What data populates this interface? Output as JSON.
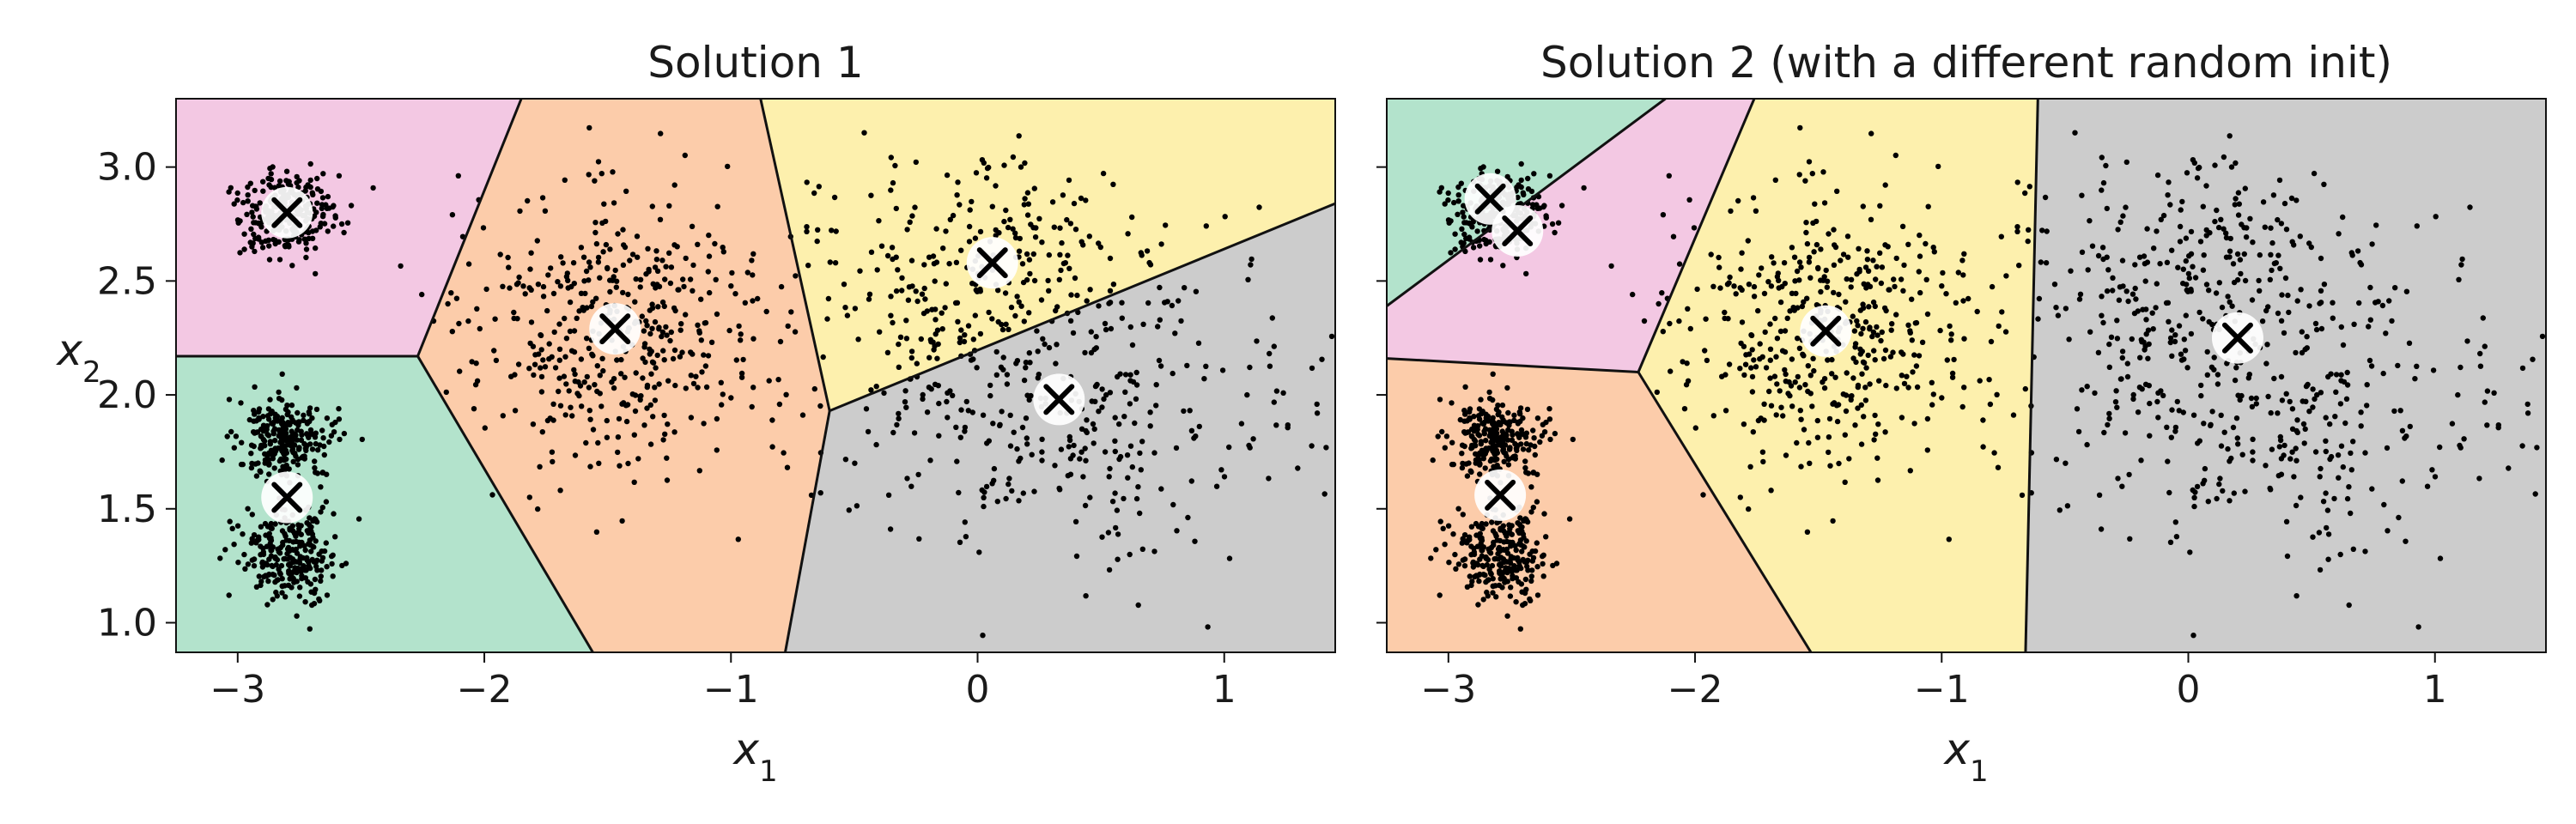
{
  "figure": {
    "colors": {
      "pink": "#f3c8e3",
      "green": "#b3e3cc",
      "orange": "#fcccaa",
      "yellow": "#fdf0ad",
      "gray": "#cccccc",
      "boundary": "#111111",
      "point": "#000000",
      "centroid_circle": "#ffffff",
      "centroid_cross": "#000000"
    },
    "centroid_marker": {
      "circle": "white-circle",
      "cross": "x-mark"
    }
  },
  "chart_data": [
    {
      "type": "scatter",
      "title": "Solution 1",
      "xlabel": "x1",
      "ylabel": "x2",
      "xlim": [
        -3.25,
        1.45
      ],
      "ylim": [
        0.87,
        3.3
      ],
      "xticks": [
        -3,
        -2,
        -1,
        0,
        1
      ],
      "xtick_labels": [
        "−3",
        "−2",
        "−1",
        "0",
        "1"
      ],
      "yticks": [
        1.0,
        1.5,
        2.0,
        2.5,
        3.0
      ],
      "ytick_labels": [
        "1.0",
        "1.5",
        "2.0",
        "2.5",
        "3.0"
      ],
      "grid": false,
      "regions": [
        {
          "color": "pink",
          "polygon": [
            [
              -3.25,
              3.3
            ],
            [
              -1.85,
              3.3
            ],
            [
              -2.27,
              2.17
            ],
            [
              -3.25,
              2.17
            ]
          ]
        },
        {
          "color": "green",
          "polygon": [
            [
              -3.25,
              2.17
            ],
            [
              -2.27,
              2.17
            ],
            [
              -1.56,
              0.87
            ],
            [
              -3.25,
              0.87
            ]
          ]
        },
        {
          "color": "orange",
          "polygon": [
            [
              -1.85,
              3.3
            ],
            [
              -0.88,
              3.3
            ],
            [
              -0.6,
              1.93
            ],
            [
              -0.78,
              0.87
            ],
            [
              -1.56,
              0.87
            ],
            [
              -2.27,
              2.17
            ]
          ]
        },
        {
          "color": "yellow",
          "polygon": [
            [
              -0.88,
              3.3
            ],
            [
              1.45,
              3.3
            ],
            [
              1.45,
              2.84
            ],
            [
              -0.6,
              1.93
            ]
          ]
        },
        {
          "color": "gray",
          "polygon": [
            [
              -0.6,
              1.93
            ],
            [
              1.45,
              2.84
            ],
            [
              1.45,
              0.87
            ],
            [
              -0.78,
              0.87
            ]
          ]
        }
      ],
      "boundaries": [
        [
          [
            -3.25,
            2.17
          ],
          [
            -2.27,
            2.17
          ]
        ],
        [
          [
            -2.27,
            2.17
          ],
          [
            -1.85,
            3.3
          ]
        ],
        [
          [
            -2.27,
            2.17
          ],
          [
            -1.56,
            0.87
          ]
        ],
        [
          [
            -0.88,
            3.3
          ],
          [
            -0.6,
            1.93
          ]
        ],
        [
          [
            -0.6,
            1.93
          ],
          [
            -0.78,
            0.87
          ]
        ],
        [
          [
            -0.6,
            1.93
          ],
          [
            1.45,
            2.84
          ]
        ]
      ],
      "centroids": [
        {
          "x": -2.8,
          "y": 2.8
        },
        {
          "x": -2.8,
          "y": 1.55
        },
        {
          "x": -1.47,
          "y": 2.29
        },
        {
          "x": 0.06,
          "y": 2.58
        },
        {
          "x": 0.33,
          "y": 1.98
        }
      ]
    },
    {
      "type": "scatter",
      "title": "Solution 2 (with a different random init)",
      "xlabel": "x1",
      "xlim": [
        -3.25,
        1.45
      ],
      "ylim": [
        0.87,
        3.3
      ],
      "xticks": [
        -3,
        -2,
        -1,
        0,
        1
      ],
      "xtick_labels": [
        "−3",
        "−2",
        "−1",
        "0",
        "1"
      ],
      "yticks": [
        1.0,
        1.5,
        2.0,
        2.5,
        3.0
      ],
      "ytick_labels": [],
      "grid": false,
      "regions": [
        {
          "color": "green",
          "polygon": [
            [
              -3.25,
              3.3
            ],
            [
              -2.12,
              3.3
            ],
            [
              -3.25,
              2.39
            ]
          ]
        },
        {
          "color": "pink",
          "polygon": [
            [
              -2.12,
              3.3
            ],
            [
              -1.76,
              3.3
            ],
            [
              -2.23,
              2.1
            ],
            [
              -3.25,
              2.16
            ],
            [
              -3.25,
              2.39
            ]
          ]
        },
        {
          "color": "orange",
          "polygon": [
            [
              -3.25,
              2.16
            ],
            [
              -2.23,
              2.1
            ],
            [
              -1.53,
              0.87
            ],
            [
              -3.25,
              0.87
            ]
          ]
        },
        {
          "color": "yellow",
          "polygon": [
            [
              -1.76,
              3.3
            ],
            [
              -0.61,
              3.3
            ],
            [
              -0.66,
              0.87
            ],
            [
              -1.53,
              0.87
            ],
            [
              -2.23,
              2.1
            ]
          ]
        },
        {
          "color": "gray",
          "polygon": [
            [
              -0.61,
              3.3
            ],
            [
              1.45,
              3.3
            ],
            [
              1.45,
              0.87
            ],
            [
              -0.66,
              0.87
            ]
          ]
        }
      ],
      "boundaries": [
        [
          [
            -3.25,
            2.39
          ],
          [
            -2.12,
            3.3
          ]
        ],
        [
          [
            -3.25,
            2.16
          ],
          [
            -2.23,
            2.1
          ]
        ],
        [
          [
            -2.23,
            2.1
          ],
          [
            -1.76,
            3.3
          ]
        ],
        [
          [
            -2.23,
            2.1
          ],
          [
            -1.53,
            0.87
          ]
        ],
        [
          [
            -0.61,
            3.3
          ],
          [
            -0.66,
            0.87
          ]
        ]
      ],
      "centroids": [
        {
          "x": -2.83,
          "y": 2.86
        },
        {
          "x": -2.72,
          "y": 2.72
        },
        {
          "x": -2.79,
          "y": 1.56
        },
        {
          "x": -1.47,
          "y": 2.28
        },
        {
          "x": 0.2,
          "y": 2.25
        }
      ]
    }
  ]
}
